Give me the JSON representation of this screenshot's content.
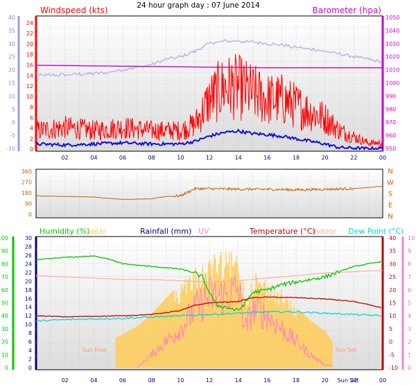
{
  "title": "24 hour graph day : 07 June 2014",
  "colors": {
    "wind": "#ff0000",
    "gust_wind": "#ff0000",
    "avg_wind": "#1010e0",
    "baro": "#cc00cc",
    "pressure_light": "#a8a8f0",
    "direction": "#c86400",
    "humidity": "#00c800",
    "solar": "#ffcc55",
    "rainfall": "#000080",
    "uv": "#ff80c0",
    "temp": "#c00000",
    "indoor": "#ffb090",
    "dew": "#00d8d8"
  },
  "chart_data": [
    {
      "type": "line",
      "title": "Windspeed (kts)",
      "right_title": "Barometer (hpa)",
      "x_ticks": [
        "02",
        "04",
        "06",
        "08",
        "10",
        "12",
        "14",
        "16",
        "18",
        "20",
        "22",
        "00"
      ],
      "left_axis": {
        "ticks": [
          "40",
          "35",
          "30",
          "25",
          "20",
          "15",
          "10",
          "5",
          "0",
          "-5",
          "-10"
        ]
      },
      "wind_axis": {
        "ticks": [
          "24",
          "22",
          "20",
          "18",
          "16",
          "14",
          "12",
          "10",
          "8",
          "6",
          "4",
          "2",
          "0"
        ],
        "ylim": [
          0,
          25
        ]
      },
      "baro_axis": {
        "ticks": [
          "1050",
          "1040",
          "1030",
          "1020",
          "1010",
          "1000",
          "990",
          "980",
          "970",
          "960",
          "950"
        ],
        "ylim": [
          948,
          1052
        ]
      },
      "series": [
        {
          "key": "wind_gust",
          "hours": [
            0,
            2,
            4,
            6,
            8,
            10,
            11,
            12,
            13,
            14,
            15,
            16,
            17,
            18,
            19,
            20,
            21,
            22,
            23,
            24
          ],
          "values": [
            3,
            3.5,
            3,
            3.5,
            3,
            3,
            4,
            8,
            10,
            10,
            9,
            8,
            8,
            7,
            6,
            5,
            3,
            2,
            1,
            1
          ]
        },
        {
          "key": "wind_avg",
          "hours": [
            0,
            2,
            4,
            6,
            8,
            10,
            11,
            12,
            13,
            14,
            15,
            16,
            17,
            18,
            19,
            20,
            21,
            22,
            23,
            24
          ],
          "values": [
            1,
            0.8,
            1,
            1.2,
            1,
            1,
            1.5,
            2.5,
            3.2,
            3.5,
            3,
            2.8,
            2.5,
            2,
            1.5,
            1,
            0.3,
            0.2,
            0.1,
            0.2
          ]
        },
        {
          "key": "barometer",
          "hours": [
            0,
            4,
            8,
            12,
            16,
            20,
            24
          ],
          "values": [
            1014,
            1013.5,
            1013,
            1012.5,
            1012,
            1012,
            1012
          ]
        },
        {
          "key": "light_axis",
          "hours": [
            0,
            2,
            3.9,
            5,
            6,
            7,
            8,
            9,
            10,
            11,
            12,
            13,
            14,
            15,
            16,
            17,
            18,
            19,
            20,
            21,
            22,
            23,
            24
          ],
          "values": [
            18,
            18,
            18.5,
            19,
            20,
            21,
            22,
            24,
            25,
            27,
            30,
            31,
            31,
            30.5,
            30,
            29.5,
            28.5,
            28,
            27,
            26,
            25,
            24,
            23
          ]
        }
      ]
    },
    {
      "type": "line",
      "title": "Wind direction",
      "x_ticks": [
        "02",
        "04",
        "06",
        "08",
        "10",
        "12",
        "14",
        "16",
        "18",
        "20",
        "22",
        "00"
      ],
      "left_ticks": [
        "360",
        "270",
        "180",
        "90",
        "0"
      ],
      "right_ticks": [
        "N",
        "W",
        "S",
        "E",
        "N"
      ],
      "ylim": [
        0,
        360
      ],
      "series": [
        {
          "key": "direction",
          "hours": [
            0,
            2,
            4,
            6,
            8,
            9,
            10,
            11,
            12,
            14,
            16,
            18,
            20,
            22,
            24
          ],
          "values": [
            155,
            150,
            145,
            125,
            130,
            150,
            155,
            215,
            215,
            210,
            210,
            205,
            210,
            215,
            235
          ]
        }
      ]
    },
    {
      "type": "line",
      "legend": [
        "Humidity (%)",
        "Solar",
        "Rainfall (mm)",
        "UV",
        "Temperature (°C)",
        "Indoor",
        "Dew Point (°C)"
      ],
      "x_ticks": [
        "02",
        "04",
        "06",
        "08",
        "10",
        "12",
        "14",
        "16",
        "18",
        "20",
        "Sun Set",
        "22",
        "00"
      ],
      "humidity_axis": {
        "ticks": [
          "100",
          "90",
          "80",
          "70",
          "60",
          "50",
          "40",
          "30",
          "20",
          "10",
          "0"
        ],
        "ylim": [
          0,
          100
        ]
      },
      "rain_axis": {
        "ticks": [
          "30",
          "28",
          "26",
          "24",
          "22",
          "20",
          "18",
          "16",
          "14",
          "12",
          "10",
          "8",
          "6",
          "4",
          "2",
          "0"
        ],
        "ylim": [
          0,
          30
        ]
      },
      "temp_axis": {
        "ticks": [
          "40",
          "35",
          "30",
          "25",
          "20",
          "15",
          "10",
          "5",
          "0",
          "-5",
          "-10"
        ],
        "ylim": [
          -10,
          40
        ]
      },
      "uv_axis": {
        "ticks": [
          "10",
          "9",
          "8",
          "7",
          "6",
          "5",
          "4",
          "3",
          "2",
          "1",
          "0"
        ],
        "ylim": [
          0,
          10
        ]
      },
      "annotations": [
        "Sun Rise",
        "Sun Set"
      ],
      "series": [
        {
          "key": "humidity",
          "hours": [
            0,
            1,
            2,
            4,
            5,
            6,
            8,
            10,
            11,
            11.5,
            12,
            12.5,
            13,
            14,
            14.5,
            15,
            16,
            17,
            18,
            19,
            20,
            21,
            22,
            23,
            24
          ],
          "values": [
            83,
            84,
            85,
            86,
            84,
            80,
            78,
            76,
            73,
            70,
            58,
            48,
            47,
            44,
            50,
            58,
            60,
            64,
            66,
            68,
            70,
            74,
            78,
            80,
            82
          ]
        },
        {
          "key": "temperature",
          "hours": [
            0,
            2,
            4,
            6,
            8,
            10,
            11,
            12,
            14,
            15,
            16,
            18,
            20,
            22,
            24
          ],
          "values": [
            10,
            9.6,
            9.8,
            10,
            10.5,
            12,
            14,
            15,
            15.5,
            17,
            17.2,
            17,
            16.5,
            15.5,
            13
          ]
        },
        {
          "key": "indoor",
          "hours": [
            0,
            2,
            4,
            6,
            8,
            10,
            12,
            14,
            16,
            18,
            20,
            22,
            24
          ],
          "values": [
            25.5,
            25,
            24.5,
            24,
            24,
            23.5,
            23,
            23.5,
            24.5,
            25.5,
            26.5,
            27,
            27.5
          ]
        },
        {
          "key": "dew_point",
          "hours": [
            0,
            2,
            4,
            6,
            8,
            10,
            12,
            14,
            16,
            18,
            20,
            22,
            24
          ],
          "values": [
            8,
            8.5,
            8.8,
            9,
            9.5,
            10,
            10.5,
            11,
            11.5,
            11.5,
            11,
            10.5,
            10
          ]
        },
        {
          "key": "solar",
          "hours": [
            0,
            5,
            6,
            7,
            8,
            9,
            10,
            11,
            12,
            13,
            14,
            14.5,
            15,
            16,
            17,
            18,
            19,
            20,
            20.5,
            24
          ],
          "values": [
            0,
            0,
            3,
            6,
            11,
            17,
            23,
            29,
            33,
            35,
            35,
            18,
            28,
            24,
            20,
            13,
            8,
            4,
            0,
            0
          ]
        },
        {
          "key": "uv",
          "hours": [
            0,
            7,
            8,
            9,
            10,
            11,
            12,
            13,
            14,
            14.5,
            15,
            16,
            17,
            18,
            19,
            20,
            24
          ],
          "values": [
            0,
            0,
            1,
            2,
            3,
            4.5,
            5.5,
            5.5,
            6,
            3,
            4.5,
            4,
            3,
            2,
            1,
            0.2,
            0
          ]
        }
      ]
    }
  ]
}
